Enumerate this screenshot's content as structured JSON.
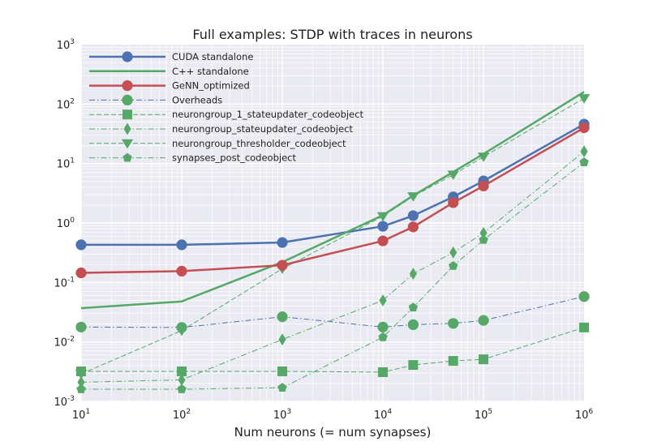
{
  "chart_data": {
    "type": "line",
    "title": "Full examples: STDP with traces in neurons",
    "xlabel": "Num neurons (= num synapses)",
    "ylabel": "",
    "xscale": "log",
    "yscale": "log",
    "xlim": [
      10,
      1000000
    ],
    "ylim": [
      0.001,
      1000
    ],
    "grid": true,
    "legend_position": "top-left",
    "x_ticks": [
      {
        "base": "10",
        "exp": "1"
      },
      {
        "base": "10",
        "exp": "2"
      },
      {
        "base": "10",
        "exp": "3"
      },
      {
        "base": "10",
        "exp": "4"
      },
      {
        "base": "10",
        "exp": "5"
      },
      {
        "base": "10",
        "exp": "6"
      }
    ],
    "y_ticks": [
      {
        "base": "10",
        "exp": "-3"
      },
      {
        "base": "10",
        "exp": "-2"
      },
      {
        "base": "10",
        "exp": "-1"
      },
      {
        "base": "10",
        "exp": "0"
      },
      {
        "base": "10",
        "exp": "1"
      },
      {
        "base": "10",
        "exp": "2"
      },
      {
        "base": "10",
        "exp": "3"
      }
    ],
    "series": [
      {
        "name": "CUDA standalone",
        "color": "#4C72B0",
        "style": "solid",
        "width": 2.5,
        "marker": "circle",
        "x": [
          10,
          100,
          1000,
          10000,
          20000,
          50000,
          100000,
          1000000
        ],
        "y": [
          0.43,
          0.43,
          0.47,
          0.88,
          1.33,
          2.75,
          5.1,
          46
        ]
      },
      {
        "name": "C++ standalone",
        "color": "#55A868",
        "style": "solid",
        "width": 2.5,
        "marker": "none",
        "x": [
          10,
          100,
          1000,
          10000,
          20000,
          50000,
          100000,
          1000000
        ],
        "y": [
          0.037,
          0.048,
          0.22,
          1.35,
          2.9,
          7.2,
          14.5,
          160
        ]
      },
      {
        "name": "GeNN_optimized",
        "color": "#C44E52",
        "style": "solid",
        "width": 2.5,
        "marker": "circle",
        "x": [
          10,
          100,
          1000,
          10000,
          20000,
          50000,
          100000,
          1000000
        ],
        "y": [
          0.145,
          0.155,
          0.195,
          0.5,
          0.86,
          2.2,
          4.2,
          40
        ]
      },
      {
        "name": "Overheads",
        "color": "#4C72B0",
        "style": "dashdot",
        "width": 1,
        "marker": "circle",
        "marker_color": "#55A868",
        "x": [
          10,
          100,
          1000,
          10000,
          20000,
          50000,
          100000,
          1000000
        ],
        "y": [
          0.0178,
          0.0175,
          0.0265,
          0.0178,
          0.0195,
          0.0205,
          0.023,
          0.058
        ]
      },
      {
        "name": "neurongroup_1_stateupdater_codeobject",
        "color": "#55A868",
        "style": "dashed",
        "width": 1,
        "marker": "square",
        "x": [
          10,
          100,
          1000,
          10000,
          20000,
          50000,
          100000,
          1000000
        ],
        "y": [
          0.0032,
          0.0032,
          0.0032,
          0.0031,
          0.0041,
          0.0048,
          0.0051,
          0.0175
        ]
      },
      {
        "name": "neurongroup_stateupdater_codeobject",
        "color": "#55A868",
        "style": "dashdot",
        "width": 1,
        "marker": "diamond",
        "x": [
          10,
          100,
          1000,
          10000,
          20000,
          50000,
          100000,
          1000000
        ],
        "y": [
          0.0021,
          0.0023,
          0.011,
          0.05,
          0.14,
          0.32,
          0.68,
          16
        ]
      },
      {
        "name": "neurongroup_thresholder_codeobject",
        "color": "#55A868",
        "style": "dashed",
        "width": 1,
        "marker": "triangle-down",
        "x": [
          10,
          100,
          1000,
          10000,
          20000,
          50000,
          100000,
          1000000
        ],
        "y": [
          0.0029,
          0.0155,
          0.17,
          1.3,
          2.8,
          6.5,
          13,
          125
        ]
      },
      {
        "name": "synapses_post_codeobject",
        "color": "#55A868",
        "style": "dashdot",
        "width": 1,
        "marker": "pentagon",
        "x": [
          10,
          100,
          1000,
          10000,
          20000,
          50000,
          100000,
          1000000
        ],
        "y": [
          0.0016,
          0.0016,
          0.0017,
          0.012,
          0.038,
          0.19,
          0.52,
          10.5
        ]
      }
    ]
  }
}
